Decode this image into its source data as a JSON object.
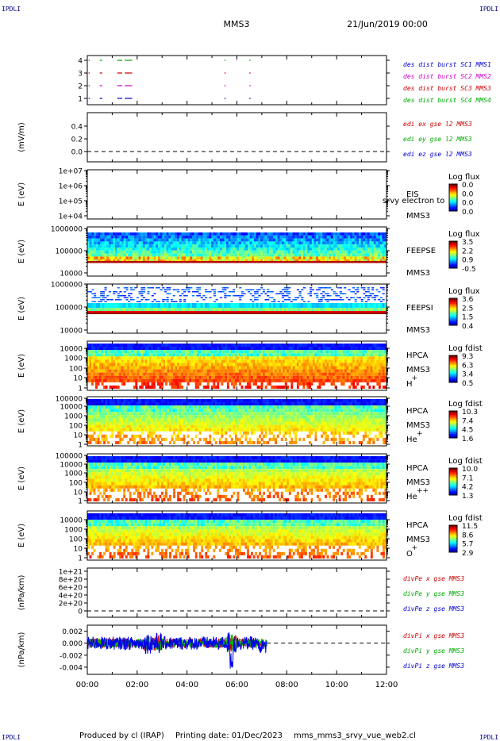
{
  "header": {
    "corner": "IPDLI",
    "spacecraft": "MMS3",
    "date": "21/Jun/2019 00:00"
  },
  "footer": {
    "produced": "Produced by cl (IRAP)",
    "printing": "Printing date: 01/Dec/2023",
    "file": "mms_mms3_srvy_vue_web2.cl"
  },
  "time_ticks": [
    "00:00",
    "02:00",
    "04:00",
    "06:00",
    "08:00",
    "10:00",
    "12:00"
  ],
  "chart_data": [
    {
      "type": "scatter",
      "name": "burst",
      "yticks": [
        "1",
        "2",
        "3",
        "4"
      ],
      "legend": [
        "des dist burst SC1 MMS1",
        "des dist burst SC2 MMS2",
        "des dist burst SC3 MMS3",
        "des dist burst SC4 MMS4"
      ],
      "legend_colors": [
        "#0000cc",
        "#cc00cc",
        "#cc0000",
        "#00aa00"
      ],
      "segments_hours": [
        [
          0.05,
          0.1
        ],
        [
          0.5,
          0.6
        ],
        [
          1.2,
          1.4
        ],
        [
          1.5,
          1.8
        ],
        [
          5.5,
          5.55
        ],
        [
          6.5,
          6.55
        ]
      ]
    },
    {
      "type": "line",
      "name": "edi",
      "ylabel": "(mV/m)",
      "yticks": [
        "0.0",
        "0.2",
        "0.4"
      ],
      "ylim": [
        -0.1,
        0.55
      ],
      "legend": [
        "edi ex gse l2 MMS3",
        "edi ey gse l2 MMS3",
        "edi ez gse l2 MMS3"
      ],
      "legend_colors": [
        "#cc0000",
        "#00aa00",
        "#0000cc"
      ],
      "values": []
    },
    {
      "type": "heatmap",
      "name": "eis",
      "ylabel": "E (eV)",
      "yticks": [
        "1e+04",
        "1e+05",
        "1e+06",
        "1e+07"
      ],
      "right_labels": [
        "EIS",
        "MMS3"
      ],
      "overlay": "srvy electron to",
      "cbar_title": "Log flux",
      "cbar_ticks": [
        "0.0",
        "0.0",
        "0.0",
        "0.0"
      ]
    },
    {
      "type": "heatmap",
      "name": "feepse",
      "ylabel": "E (eV)",
      "yticks": [
        "10000",
        "100000",
        "1000000"
      ],
      "right_labels": [
        "FEEPSE",
        "MMS3"
      ],
      "cbar_title": "Log flux",
      "cbar_ticks": [
        "3.5",
        "2.2",
        "0.9",
        "-0.5"
      ]
    },
    {
      "type": "heatmap",
      "name": "feepsi",
      "ylabel": "E (eV)",
      "yticks": [
        "10000",
        "100000",
        "1000000"
      ],
      "right_labels": [
        "FEEPSI",
        "MMS3"
      ],
      "cbar_title": "Log flux",
      "cbar_ticks": [
        "3.6",
        "2.5",
        "1.5",
        "0.4"
      ]
    },
    {
      "type": "heatmap",
      "name": "hpca-h",
      "ylabel": "E (eV)",
      "yticks": [
        "1",
        "10",
        "100",
        "1000",
        "10000"
      ],
      "right_labels": [
        "HPCA",
        "MMS3",
        "H"
      ],
      "ion_sup": "+",
      "cbar_title": "Log fdist",
      "cbar_ticks": [
        "9.3",
        "6.3",
        "3.4",
        "0.5"
      ]
    },
    {
      "type": "heatmap",
      "name": "hpca-he",
      "ylabel": "E (eV)",
      "yticks": [
        "1",
        "10",
        "100",
        "1000",
        "10000",
        "100000"
      ],
      "right_labels": [
        "HPCA",
        "MMS3",
        "He"
      ],
      "ion_sup": "+",
      "cbar_title": "Log fdist",
      "cbar_ticks": [
        "10.3",
        "7.4",
        "4.5",
        "1.6"
      ]
    },
    {
      "type": "heatmap",
      "name": "hpca-he2",
      "ylabel": "E (eV)",
      "yticks": [
        "1",
        "10",
        "100",
        "1000",
        "10000",
        "100000"
      ],
      "right_labels": [
        "HPCA",
        "MMS3",
        "He"
      ],
      "ion_sup": "++",
      "cbar_title": "Log fdist",
      "cbar_ticks": [
        "10.0",
        "7.1",
        "4.2",
        "1.3"
      ]
    },
    {
      "type": "heatmap",
      "name": "hpca-o",
      "ylabel": "E (eV)",
      "yticks": [
        "1",
        "10",
        "100",
        "1000",
        "10000"
      ],
      "right_labels": [
        "HPCA",
        "MMS3",
        "O"
      ],
      "ion_sup": "+",
      "cbar_title": "Log fdist",
      "cbar_ticks": [
        "11.5",
        "8.6",
        "5.7",
        "2.9"
      ]
    },
    {
      "type": "line",
      "name": "divpe",
      "ylabel": "(nPa/km)",
      "yticks": [
        "0",
        "2e+20",
        "4e+20",
        "6e+20",
        "8e+20",
        "1e+21"
      ],
      "legend": [
        "divPe x gse MMS3",
        "divPe y gse MMS3",
        "divPe z gse MMS3"
      ],
      "legend_colors": [
        "#cc0000",
        "#00aa00",
        "#0000cc"
      ],
      "values": []
    },
    {
      "type": "line",
      "name": "divpi",
      "ylabel": "(nPa/km)",
      "yticks": [
        "-0.004",
        "-0.002",
        "0.000",
        "0.002"
      ],
      "ylim": [
        -0.0052,
        0.003
      ],
      "legend": [
        "divPi x gse MMS3",
        "divPi y gse MMS3",
        "divPi z gse MMS3"
      ],
      "legend_colors": [
        "#cc0000",
        "#00aa00",
        "#0000cc"
      ],
      "data_end_hour": 7.2
    }
  ]
}
